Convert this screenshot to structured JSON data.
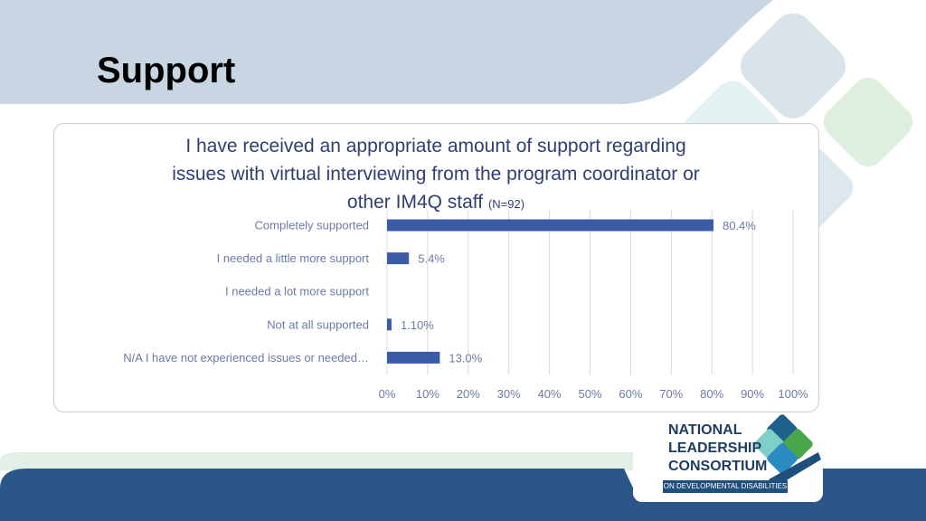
{
  "slide": {
    "title": "Support"
  },
  "logo": {
    "line1": "NATIONAL",
    "line2": "LEADERSHIP",
    "line3": "CONSORTIUM",
    "tagline": "ON DEVELOPMENTAL DISABILITIES"
  },
  "colors": {
    "bar": "#3c5ba6",
    "title_text": "#2d3f73",
    "axis_text": "#6a7aa8",
    "gridline": "#d9d9d9",
    "header_band": "#c7d6e2",
    "footer_band": "#2a5688"
  },
  "chart_data": {
    "type": "bar",
    "orientation": "horizontal",
    "title_line1": "I have received an appropriate amount of support regarding",
    "title_line2": "issues with virtual interviewing from the program coordinator or",
    "title_line3": "other IM4Q staff",
    "title_note": "(N=92)",
    "categories": [
      "Completely supported",
      "I needed a little more support",
      "I needed a lot more support",
      "Not at all supported",
      "N/A I have not experienced issues or needed…"
    ],
    "values": [
      80.4,
      5.4,
      0,
      1.1,
      13.0
    ],
    "data_labels": [
      "80.4%",
      "5.4%",
      "",
      "1.10%",
      "13.0%"
    ],
    "xlim": [
      0,
      100
    ],
    "x_ticks": [
      "0%",
      "10%",
      "20%",
      "30%",
      "40%",
      "50%",
      "60%",
      "70%",
      "80%",
      "90%",
      "100%"
    ],
    "grid": true,
    "legend": "none"
  }
}
